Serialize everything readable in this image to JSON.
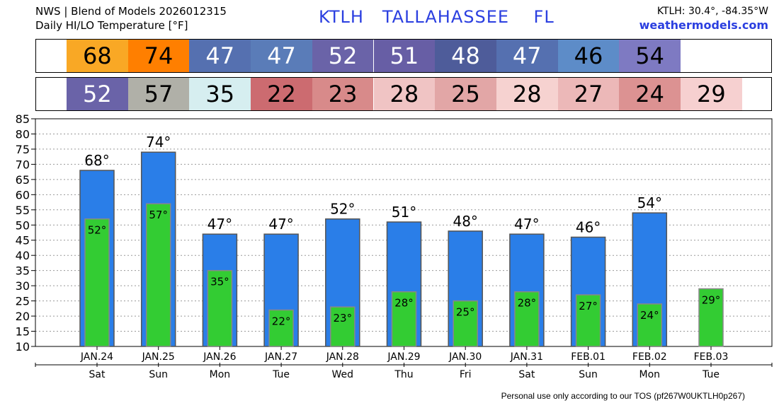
{
  "header": {
    "line1": "NWS | Blend of Models 2026012315",
    "line2": "Daily HI/LO Temperature [°F]",
    "title": "KTLH   TALLAHASSEE    FL",
    "coords": "KTLH: 30.4°, -84.35°W",
    "site": "weathermodels.com"
  },
  "footer": "Personal use only according to our TOS (pf267W0UKTLH0p267)",
  "strips": {
    "hi": [
      {
        "text": "68",
        "bg": "#f9a825",
        "fg": "#000000"
      },
      {
        "text": "74",
        "bg": "#ff7f00",
        "fg": "#000000"
      },
      {
        "text": "47",
        "bg": "#5570b0",
        "fg": "#ffffff"
      },
      {
        "text": "47",
        "bg": "#5a7cb8",
        "fg": "#ffffff"
      },
      {
        "text": "52",
        "bg": "#6a63a8",
        "fg": "#ffffff"
      },
      {
        "text": "51",
        "bg": "#675ea5",
        "fg": "#ffffff"
      },
      {
        "text": "48",
        "bg": "#4e5c9a",
        "fg": "#ffffff"
      },
      {
        "text": "47",
        "bg": "#5570b0",
        "fg": "#ffffff"
      },
      {
        "text": "46",
        "bg": "#5d8cc8",
        "fg": "#000000"
      },
      {
        "text": "54",
        "bg": "#7e7ac2",
        "fg": "#000000"
      }
    ],
    "lo": [
      {
        "text": "52",
        "bg": "#6a63a8",
        "fg": "#ffffff"
      },
      {
        "text": "57",
        "bg": "#b0b0a8",
        "fg": "#000000"
      },
      {
        "text": "35",
        "bg": "#d6eef0",
        "fg": "#000000"
      },
      {
        "text": "22",
        "bg": "#cc6b70",
        "fg": "#000000"
      },
      {
        "text": "23",
        "bg": "#d88a8a",
        "fg": "#000000"
      },
      {
        "text": "28",
        "bg": "#f0c4c4",
        "fg": "#000000"
      },
      {
        "text": "25",
        "bg": "#e2a6a6",
        "fg": "#000000"
      },
      {
        "text": "28",
        "bg": "#f6d2d0",
        "fg": "#000000"
      },
      {
        "text": "27",
        "bg": "#ecb8b8",
        "fg": "#000000"
      },
      {
        "text": "24",
        "bg": "#dc9292",
        "fg": "#000000"
      },
      {
        "text": "29",
        "bg": "#f6d0d0",
        "fg": "#000000"
      }
    ]
  },
  "chart_data": {
    "type": "bar",
    "categories": [
      "JAN.24",
      "JAN.25",
      "JAN.26",
      "JAN.27",
      "JAN.28",
      "JAN.29",
      "JAN.30",
      "JAN.31",
      "FEB.01",
      "FEB.02",
      "FEB.03"
    ],
    "days": [
      "Sat",
      "Sun",
      "Mon",
      "Tue",
      "Wed",
      "Thu",
      "Fri",
      "Sat",
      "Sun",
      "Mon",
      "Tue"
    ],
    "series": [
      {
        "values": [
          68,
          74,
          47,
          47,
          52,
          51,
          48,
          47,
          46,
          54,
          null
        ],
        "color": "#2a7ee8"
      },
      {
        "values": [
          52,
          57,
          35,
          22,
          23,
          28,
          25,
          28,
          27,
          24,
          29
        ],
        "color": "#33cc33"
      }
    ],
    "hi_labels": [
      "68°",
      "74°",
      "47°",
      "47°",
      "52°",
      "51°",
      "48°",
      "47°",
      "46°",
      "54°",
      ""
    ],
    "lo_labels": [
      "52°",
      "57°",
      "35°",
      "22°",
      "23°",
      "28°",
      "25°",
      "28°",
      "27°",
      "24°",
      "29°"
    ],
    "ylim": [
      10,
      85
    ],
    "yticks": [
      "10",
      "15",
      "20",
      "25",
      "30",
      "35",
      "40",
      "45",
      "50",
      "55",
      "60",
      "65",
      "70",
      "75",
      "80",
      "85"
    ],
    "grid": true
  }
}
